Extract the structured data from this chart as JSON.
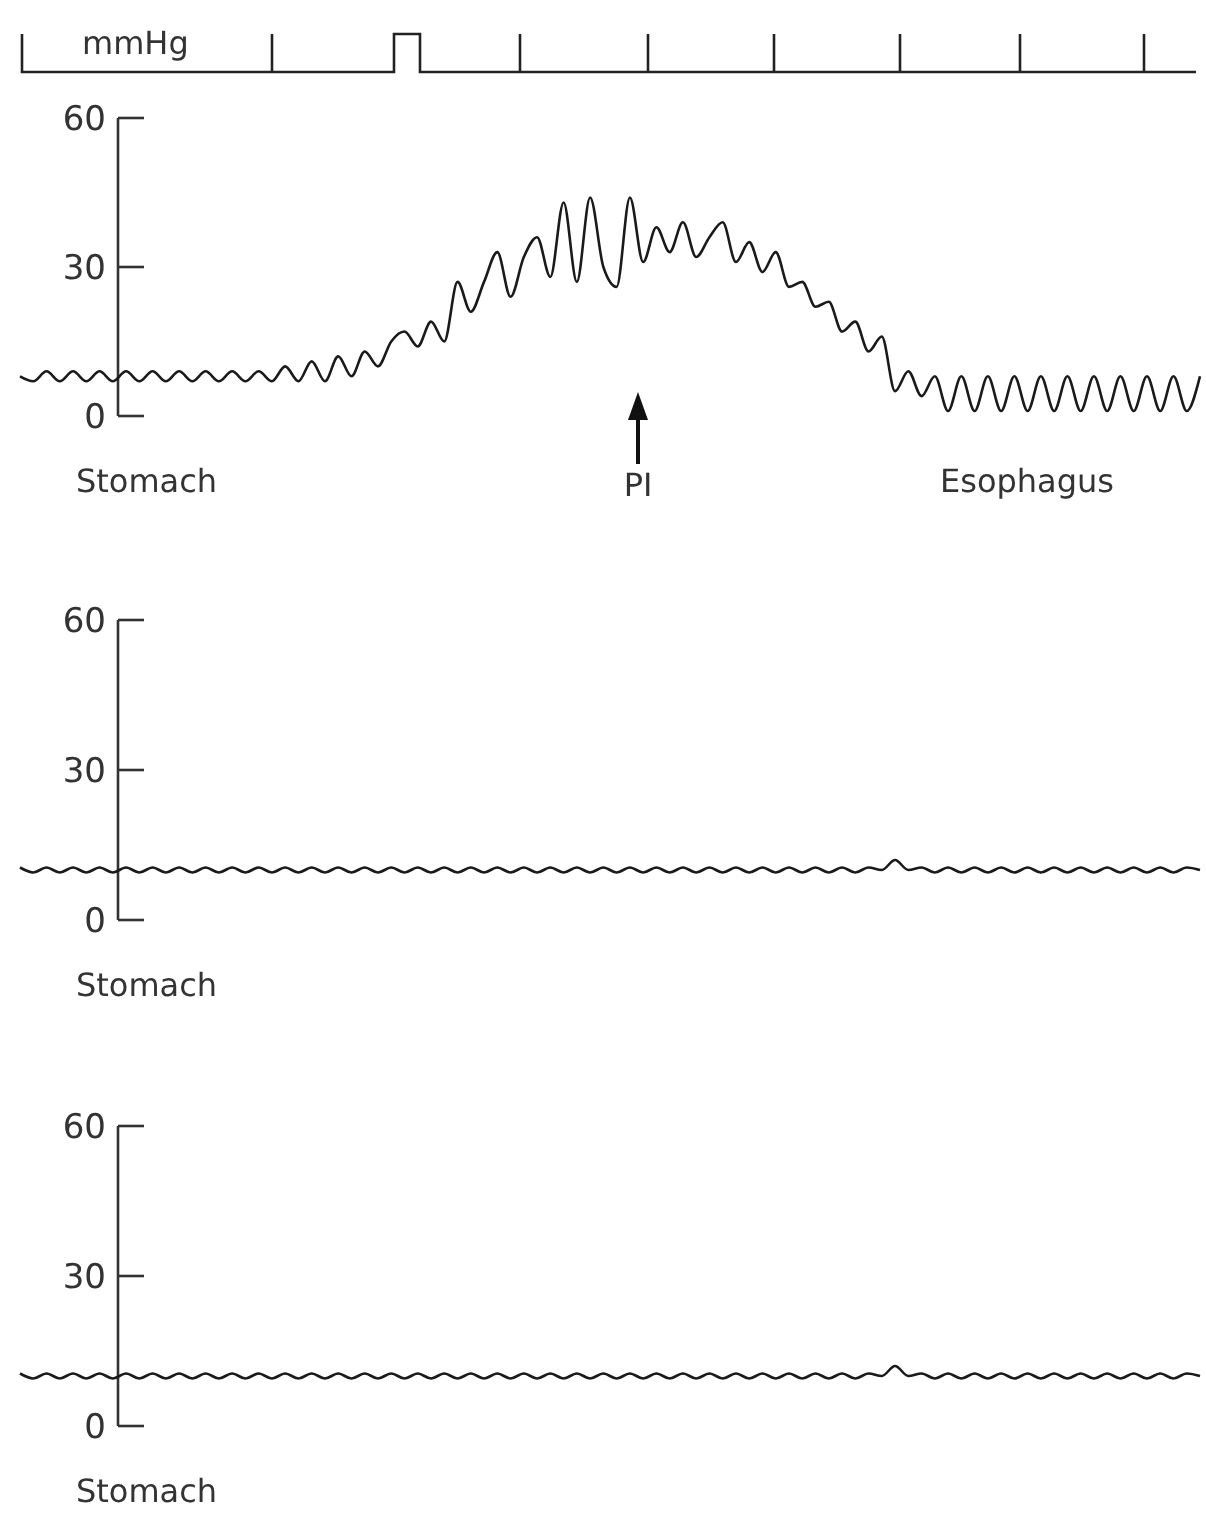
{
  "chart_data": [
    {
      "type": "line",
      "ylabel": "mmHg",
      "categories": [
        null,
        null,
        null,
        null,
        null,
        null,
        null,
        null,
        null,
        null,
        null,
        null,
        null,
        null,
        null,
        null,
        null,
        null,
        null,
        null,
        null,
        null,
        null,
        null,
        null,
        null,
        null,
        null,
        null,
        null,
        null,
        null,
        null,
        null,
        null,
        null,
        null,
        null,
        null,
        null,
        null,
        null,
        null,
        null,
        null,
        null,
        null,
        null,
        null,
        null,
        null,
        null,
        null,
        null,
        null,
        null,
        null,
        null,
        null,
        null,
        null,
        null,
        null,
        null,
        null,
        null,
        null,
        null,
        null,
        null,
        null,
        null,
        null,
        null,
        null,
        null,
        null,
        null,
        null,
        null,
        null,
        null,
        null,
        null,
        null,
        null,
        null,
        null,
        null,
        null
      ],
      "series": [
        {
          "color": "#1a1a1a",
          "values": [
            8,
            7,
            9,
            7,
            9,
            7,
            9,
            7,
            9,
            7,
            9,
            7,
            9,
            7,
            9,
            7,
            9,
            7,
            9,
            7,
            10,
            7,
            11,
            7,
            12,
            8,
            13,
            10,
            15,
            17,
            14,
            19,
            15,
            27,
            21,
            27,
            33,
            24,
            32,
            36,
            28,
            43,
            27,
            44,
            30,
            26,
            44,
            31,
            38,
            33,
            39,
            32,
            36,
            39,
            31,
            35,
            29,
            33,
            26,
            27,
            22,
            23,
            17,
            19,
            13,
            16,
            5,
            9,
            4,
            8,
            1,
            8,
            1,
            8,
            1,
            8,
            1,
            8,
            1,
            8,
            1,
            8,
            1,
            8,
            1,
            8,
            1,
            8,
            1,
            8
          ]
        }
      ],
      "ylim": [
        0,
        60
      ],
      "yticks": [
        0,
        30,
        60
      ],
      "tick_labels": "y",
      "grid": false,
      "annotations": [
        "Stomach",
        "PI",
        "Esophagus"
      ]
    },
    {
      "type": "line",
      "categories": [
        null,
        null,
        null,
        null,
        null,
        null,
        null,
        null,
        null,
        null,
        null,
        null,
        null,
        null,
        null,
        null,
        null,
        null,
        null,
        null,
        null,
        null,
        null,
        null,
        null,
        null,
        null,
        null,
        null,
        null,
        null,
        null,
        null,
        null,
        null,
        null,
        null,
        null,
        null,
        null,
        null,
        null,
        null,
        null,
        null,
        null,
        null,
        null,
        null,
        null,
        null,
        null,
        null,
        null,
        null,
        null,
        null,
        null,
        null,
        null,
        null,
        null,
        null,
        null,
        null,
        null,
        null,
        null,
        null,
        null,
        null,
        null,
        null,
        null,
        null,
        null,
        null,
        null,
        null,
        null,
        null,
        null,
        null,
        null,
        null,
        null,
        null,
        null,
        null,
        null
      ],
      "series": [
        {
          "color": "#1a1a1a",
          "values": [
            10.5,
            9.5,
            10.5,
            9.5,
            10.5,
            9.5,
            10.5,
            9.5,
            10.5,
            9.5,
            10.5,
            9.5,
            10.5,
            9.5,
            10.5,
            9.5,
            10.5,
            9.5,
            10.5,
            9.5,
            10.5,
            9.5,
            10.5,
            9.5,
            10.5,
            9.5,
            10.5,
            9.5,
            10.5,
            9.5,
            10.5,
            9.5,
            10.5,
            9.5,
            10.5,
            9.5,
            10.5,
            9.5,
            10.5,
            9.5,
            10.5,
            9.5,
            10.5,
            9.5,
            10.5,
            9.5,
            10.5,
            9.5,
            10.5,
            9.5,
            10.5,
            9.5,
            10.5,
            9.5,
            10.5,
            9.5,
            10.5,
            9.5,
            10.5,
            9.5,
            10.5,
            9.5,
            10.5,
            9.5,
            10.5,
            10,
            12,
            10,
            10.5,
            9.5,
            10.5,
            9.5,
            10.5,
            9.5,
            10.5,
            9.5,
            10.5,
            9.5,
            10.5,
            9.5,
            10.5,
            9.5,
            10.5,
            9.5,
            10.5,
            9.5,
            10.5,
            9.5,
            10.5,
            10
          ]
        }
      ],
      "ylim": [
        0,
        60
      ],
      "yticks": [
        0,
        30,
        60
      ],
      "tick_labels": "y",
      "grid": false,
      "annotations": [
        "Stomach"
      ]
    },
    {
      "type": "line",
      "categories": [
        null,
        null,
        null,
        null,
        null,
        null,
        null,
        null,
        null,
        null,
        null,
        null,
        null,
        null,
        null,
        null,
        null,
        null,
        null,
        null,
        null,
        null,
        null,
        null,
        null,
        null,
        null,
        null,
        null,
        null,
        null,
        null,
        null,
        null,
        null,
        null,
        null,
        null,
        null,
        null,
        null,
        null,
        null,
        null,
        null,
        null,
        null,
        null,
        null,
        null,
        null,
        null,
        null,
        null,
        null,
        null,
        null,
        null,
        null,
        null,
        null,
        null,
        null,
        null,
        null,
        null,
        null,
        null,
        null,
        null,
        null,
        null,
        null,
        null,
        null,
        null,
        null,
        null,
        null,
        null,
        null,
        null,
        null,
        null,
        null,
        null,
        null,
        null,
        null,
        null
      ],
      "series": [
        {
          "color": "#1a1a1a",
          "values": [
            10.5,
            9.5,
            10.5,
            9.5,
            10.5,
            9.5,
            10.5,
            9.5,
            10.5,
            9.5,
            10.5,
            9.5,
            10.5,
            9.5,
            10.5,
            9.5,
            10.5,
            9.5,
            10.5,
            9.5,
            10.5,
            9.5,
            10.5,
            9.5,
            10.5,
            9.5,
            10.5,
            9.5,
            10.5,
            9.5,
            10.5,
            9.5,
            10.5,
            9.5,
            10.5,
            9.5,
            10.5,
            9.5,
            10.5,
            9.5,
            10.5,
            9.5,
            10.5,
            9.5,
            10.5,
            9.5,
            10.5,
            9.5,
            10.5,
            9.5,
            10.5,
            9.5,
            10.5,
            9.5,
            10.5,
            9.5,
            10.5,
            9.5,
            10.5,
            9.5,
            10.5,
            9.5,
            10.5,
            9.5,
            10.5,
            10,
            12,
            10,
            10.5,
            9.5,
            10.5,
            9.5,
            10.5,
            9.5,
            10.5,
            9.5,
            10.5,
            9.5,
            10.5,
            9.5,
            10.5,
            9.5,
            10.5,
            9.5,
            10.5,
            9.5,
            10.5,
            9.5,
            10.5,
            10
          ]
        }
      ],
      "ylim": [
        0,
        60
      ],
      "yticks": [
        0,
        30,
        60
      ],
      "tick_labels": "y",
      "grid": false,
      "annotations": [
        "Stomach"
      ]
    }
  ]
}
